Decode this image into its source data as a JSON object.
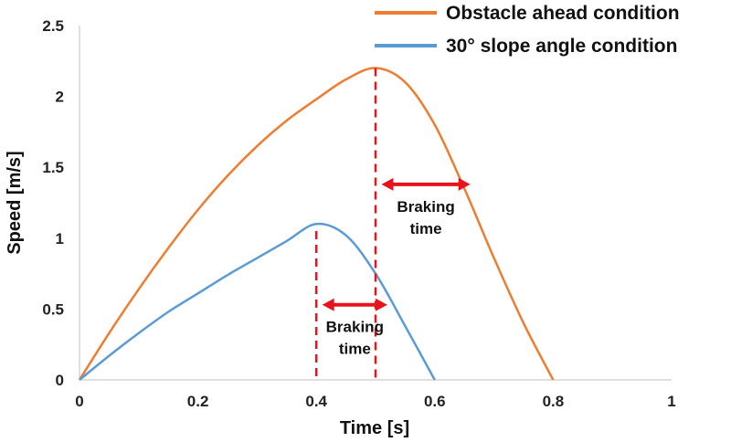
{
  "chart_data": {
    "type": "line",
    "title": "",
    "xlabel": "Time [s]",
    "ylabel": "Speed [m/s]",
    "xlim": [
      0,
      1
    ],
    "ylim": [
      0,
      2.5
    ],
    "xticks": [
      0,
      0.2,
      0.4,
      0.6,
      0.8,
      1
    ],
    "xtick_labels": [
      "0",
      "0.2",
      "0.4",
      "0.6",
      "0.8",
      "1"
    ],
    "yticks": [
      0,
      0.5,
      1,
      1.5,
      2,
      2.5
    ],
    "ytick_labels": [
      "0",
      "0.5",
      "1",
      "1.5",
      "2",
      "2.5"
    ],
    "grid": false,
    "legend_position": "top-right",
    "series": [
      {
        "name": "Obstacle ahead condition",
        "color": "#ED7D31",
        "x": [
          0,
          0.05,
          0.1,
          0.15,
          0.2,
          0.25,
          0.3,
          0.35,
          0.4,
          0.45,
          0.5,
          0.55,
          0.6,
          0.65,
          0.7,
          0.75,
          0.8
        ],
        "y": [
          0,
          0.33,
          0.64,
          0.93,
          1.2,
          1.44,
          1.65,
          1.83,
          1.98,
          2.12,
          2.2,
          2.1,
          1.8,
          1.35,
          0.86,
          0.4,
          0
        ]
      },
      {
        "name": "30° slope angle condition",
        "color": "#5B9BD5",
        "x": [
          0,
          0.05,
          0.1,
          0.15,
          0.2,
          0.25,
          0.3,
          0.35,
          0.4,
          0.45,
          0.5,
          0.55,
          0.6
        ],
        "y": [
          0,
          0.17,
          0.33,
          0.48,
          0.61,
          0.74,
          0.86,
          0.98,
          1.1,
          1.02,
          0.75,
          0.38,
          0
        ]
      }
    ],
    "annotations": [
      {
        "text_lines": [
          "Braking",
          "time"
        ],
        "marker_x": 0.5,
        "marker_y": 2.2,
        "arrow_from_x": 0.51,
        "arrow_to_x": 0.66,
        "arrow_y": 1.38,
        "color": "#E8141C"
      },
      {
        "text_lines": [
          "Braking",
          "time"
        ],
        "marker_x": 0.4,
        "marker_y": 1.05,
        "arrow_from_x": 0.41,
        "arrow_to_x": 0.52,
        "arrow_y": 0.53,
        "color": "#E8141C"
      }
    ]
  }
}
